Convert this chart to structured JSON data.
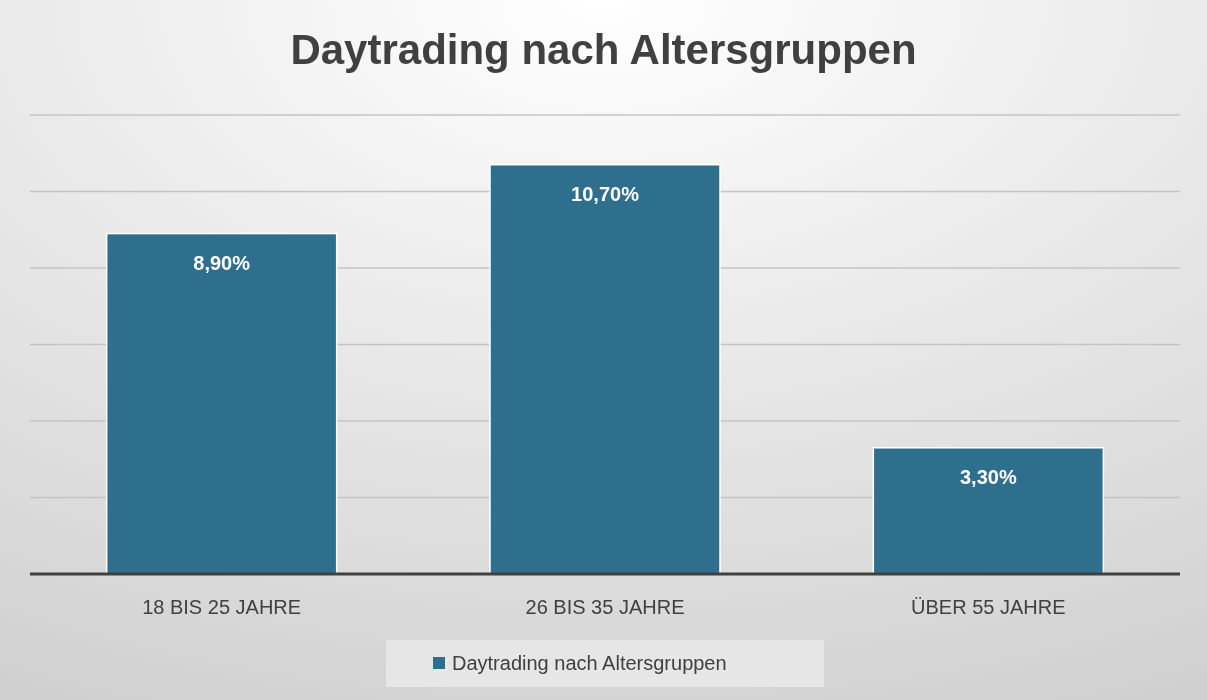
{
  "chart_data": {
    "type": "bar",
    "title": "Daytrading nach Altersgruppen",
    "categories": [
      "18 BIS 25 JAHRE",
      "26 BIS 35 JAHRE",
      "ÜBER 55 JAHRE"
    ],
    "series": [
      {
        "name": "Daytrading nach Altersgruppen",
        "color": "#2e6f8e",
        "values": [
          8.9,
          10.7,
          3.3
        ],
        "value_labels": [
          "8,90%",
          "10,70%",
          "3,30%"
        ]
      }
    ],
    "ylim": [
      0,
      12
    ],
    "yticks": [
      {
        "value": 0,
        "label": null
      },
      {
        "value": 2,
        "label": null
      },
      {
        "value": 4,
        "label": null
      },
      {
        "value": 6,
        "label": null
      },
      {
        "value": 8,
        "label": null
      },
      {
        "value": 10,
        "label": null
      },
      {
        "value": 12,
        "label": null
      }
    ],
    "tick_labels": "x",
    "grid": "y",
    "legend": "bottom"
  }
}
